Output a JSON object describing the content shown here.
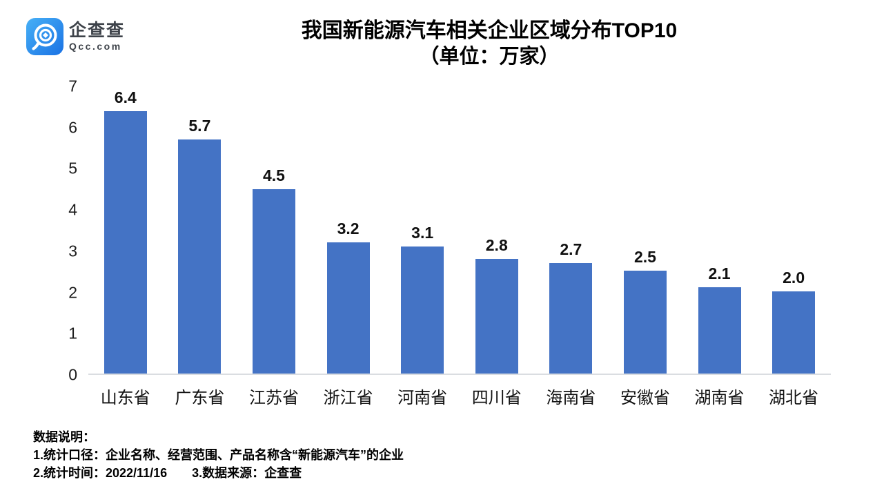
{
  "brand": {
    "logo_text": "企查查",
    "logo_subtext": "Qcc.com",
    "logo_gradient_top": "#47b0f6",
    "logo_gradient_bottom": "#1a72e4"
  },
  "chart_data": {
    "type": "bar",
    "title": "我国新能源汽车相关企业区域分布TOP10",
    "subtitle": "（单位：万家）",
    "categories": [
      "山东省",
      "广东省",
      "江苏省",
      "浙江省",
      "河南省",
      "四川省",
      "海南省",
      "安徽省",
      "湖南省",
      "湖北省"
    ],
    "values": [
      6.4,
      5.7,
      4.5,
      3.2,
      3.1,
      2.8,
      2.7,
      2.5,
      2.1,
      2.0
    ],
    "xlabel": "",
    "ylabel": "",
    "ylim": [
      0,
      7
    ],
    "yticks": [
      0,
      1,
      2,
      3,
      4,
      5,
      6,
      7
    ],
    "grid": false,
    "legend": false,
    "value_labels": true,
    "bar_color": "#4473c5",
    "axis_line_color": "#dadde1"
  },
  "footnotes": {
    "heading": "数据说明：",
    "line1": "1.统计口径：企业名称、经营范围、产品名称含“新能源汽车”的企业",
    "line2": "2.统计时间：2022/11/16　　3.数据来源：企查查"
  }
}
